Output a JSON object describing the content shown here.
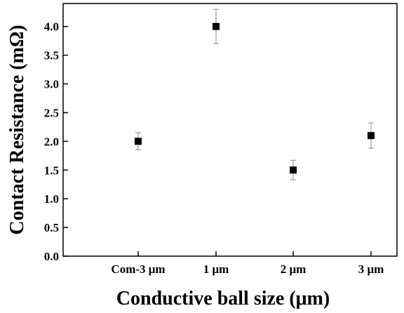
{
  "chart_data": {
    "type": "scatter",
    "title": "",
    "xlabel": "Conductive ball size (μm)",
    "ylabel": "Contact Resistance (mΩ)",
    "categories": [
      "Com-3 μm",
      "1 μm",
      "2 μm",
      "3 μm"
    ],
    "series": [
      {
        "values": [
          2.0,
          4.0,
          1.5,
          2.1
        ],
        "errors": [
          0.15,
          0.3,
          0.17,
          0.22
        ]
      }
    ],
    "ylim": [
      0,
      4.4
    ],
    "yticks": [
      "0.0",
      "0.5",
      "1.0",
      "1.5",
      "2.0",
      "2.5",
      "3.0",
      "3.5",
      "4.0"
    ],
    "grid": false,
    "marker": "square",
    "marker_color": "#000000",
    "errorbar_color": "#888888"
  }
}
